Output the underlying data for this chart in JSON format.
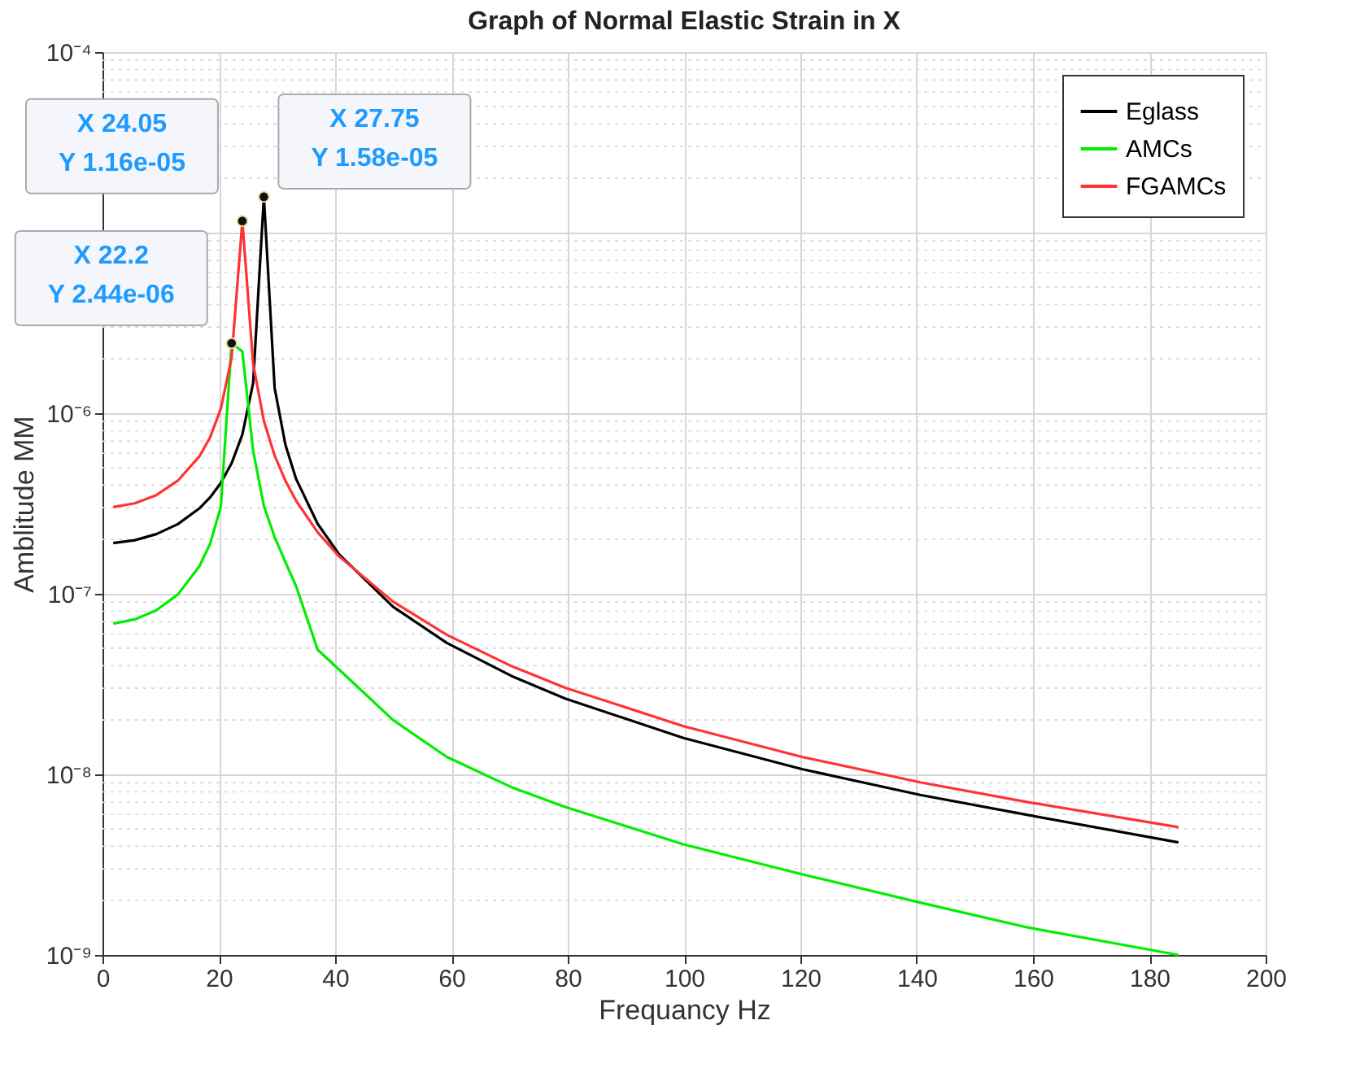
{
  "chart_data": {
    "type": "line",
    "title": "Graph of Normal Elastic Strain in X",
    "xlabel": "Frequancy Hz",
    "ylabel": "Amblitude MM",
    "x": [
      1.85,
      5.55,
      9.25,
      12.95,
      16.65,
      18.5,
      20.35,
      22.2,
      24.05,
      25.9,
      27.75,
      29.6,
      31.45,
      33.3,
      37,
      40.7,
      49.95,
      59.2,
      70.3,
      79.55,
      99.9,
      120.25,
      140.6,
      159.1,
      185
    ],
    "series": [
      {
        "name": "Eglass",
        "color": "#000000",
        "values": [
          1.91e-07,
          1.98e-07,
          2.14e-07,
          2.43e-07,
          2.97e-07,
          3.42e-07,
          4.11e-07,
          5.28e-07,
          7.63e-07,
          1.47e-06,
          1.58e-05,
          1.38e-06,
          6.69e-07,
          4.32e-07,
          2.44e-07,
          1.65e-07,
          8.48e-08,
          5.35e-08,
          3.51e-08,
          2.63e-08,
          1.59e-08,
          1.07e-08,
          7.7e-09,
          5.96e-09,
          4.2e-09
        ]
      },
      {
        "name": "AMCs",
        "color": "#00ee00",
        "values": [
          6.84e-08,
          7.22e-08,
          8.1e-08,
          9.91e-08,
          1.42e-07,
          1.89e-07,
          3.04e-07,
          2.44e-06,
          2.2e-06,
          6.2e-07,
          3.07e-07,
          2.06e-07,
          1.5e-07,
          1.1e-07,
          4.9e-08,
          3.8e-08,
          2e-08,
          1.25e-08,
          8.5e-09,
          6.6e-09,
          4.1e-09,
          2.8e-09,
          1.95e-09,
          1.42e-09,
          1e-09
        ]
      },
      {
        "name": "FGAMCs",
        "color": "#ff3333",
        "values": [
          3.02e-07,
          3.17e-07,
          3.52e-07,
          4.23e-07,
          5.76e-07,
          7.35e-07,
          1.06e-06,
          2.03e-06,
          1.16e-05,
          1.88e-06,
          9.06e-07,
          5.83e-07,
          4.23e-07,
          3.27e-07,
          2.19e-07,
          1.61e-07,
          9.05e-08,
          5.93e-08,
          3.98e-08,
          3.02e-08,
          1.85e-08,
          1.25e-08,
          9.04e-09,
          7.02e-09,
          5.1e-09
        ]
      }
    ],
    "xlim": [
      0,
      200
    ],
    "xticks": [
      0,
      20,
      40,
      60,
      80,
      100,
      120,
      140,
      160,
      180,
      200
    ],
    "ylim": [
      1e-09,
      0.0001
    ],
    "yticks": [
      {
        "value": 1e-09,
        "label": "10⁻⁹"
      },
      {
        "value": 1e-08,
        "label": "10⁻⁸"
      },
      {
        "value": 1e-07,
        "label": "10⁻⁷"
      },
      {
        "value": 1e-06,
        "label": "10⁻⁶"
      },
      {
        "value": 1e-05,
        "label": null
      },
      {
        "value": 0.0001,
        "label": "10⁻⁴"
      }
    ],
    "log": "y",
    "grid": true,
    "legend": "top right",
    "line_style": "solid",
    "marker": "none",
    "annotations": [
      {
        "text": "X 27.75\nY 1.58e-05",
        "x": 27.75,
        "y": 1.58e-05
      },
      {
        "text": "X 24.05\nY 1.16e-05",
        "x": 24.05,
        "y": 1.16e-05
      },
      {
        "text": "X 22.2\nY 2.44e-06",
        "x": 22.2,
        "y": 2.44e-06
      }
    ]
  }
}
